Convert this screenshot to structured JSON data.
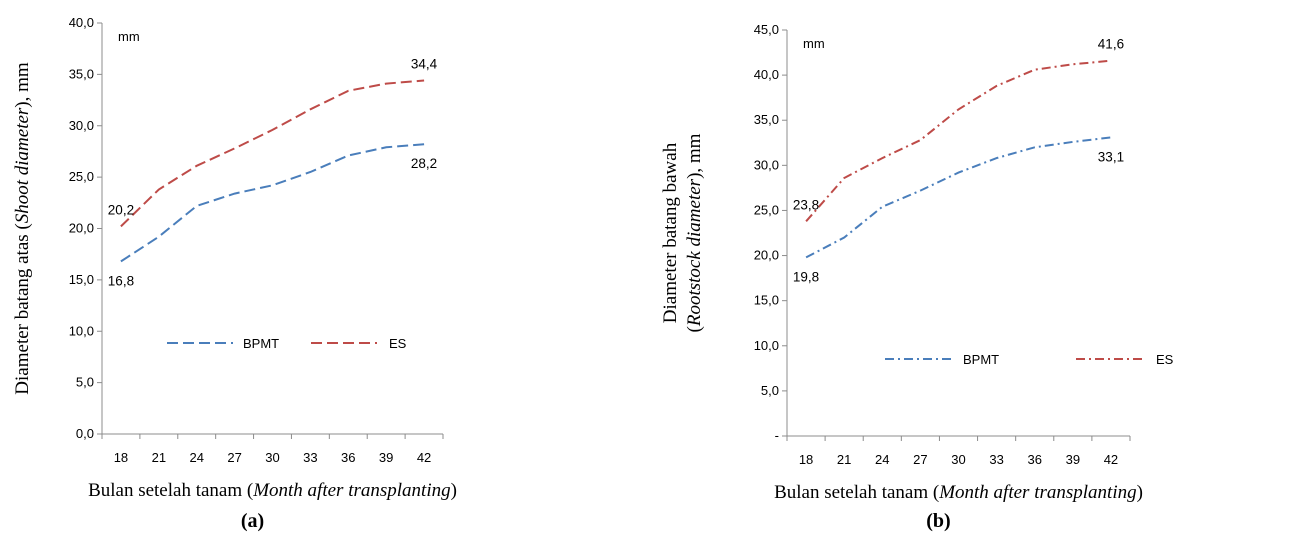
{
  "chart_data": [
    {
      "panel": "(a)",
      "type": "line",
      "unit_label": "mm",
      "xlabel": "Bulan setelah tanam (Month after transplanting)",
      "xlabel_parts": [
        {
          "text": "Bulan setelah tanam (",
          "italic": false
        },
        {
          "text": "Month after transplanting",
          "italic": true
        },
        {
          "text": ")",
          "italic": false
        }
      ],
      "ylabel_lines": [
        [
          {
            "text": "Diameter batang atas (",
            "italic": false
          },
          {
            "text": "Shoot diameter",
            "italic": true
          },
          {
            "text": "), mm",
            "italic": false
          }
        ]
      ],
      "x": [
        18,
        21,
        24,
        27,
        30,
        33,
        36,
        39,
        42
      ],
      "ylim": [
        0,
        40
      ],
      "yticks": [
        "0,0",
        "5,0",
        "10,0",
        "15,0",
        "20,0",
        "25,0",
        "30,0",
        "35,0",
        "40,0"
      ],
      "series": [
        {
          "name": "BPMT",
          "color": "#4a7ebb",
          "dash": "dash",
          "values": [
            16.8,
            19.2,
            22.2,
            23.4,
            24.2,
            25.5,
            27.1,
            27.9,
            28.2
          ],
          "labels": [
            {
              "index": 0,
              "text": "16,8",
              "pos": "below"
            },
            {
              "index": 8,
              "text": "28,2",
              "pos": "below"
            }
          ]
        },
        {
          "name": "ES",
          "color": "#be4b48",
          "dash": "dash",
          "values": [
            20.2,
            23.8,
            26.1,
            27.8,
            29.6,
            31.6,
            33.4,
            34.1,
            34.4
          ],
          "labels": [
            {
              "index": 0,
              "text": "20,2",
              "pos": "above"
            },
            {
              "index": 8,
              "text": "34,4",
              "pos": "above"
            }
          ]
        }
      ],
      "grid": false,
      "legend_position": "bottom-left"
    },
    {
      "panel": "(b)",
      "type": "line",
      "unit_label": "mm",
      "xlabel": "Bulan setelah tanam (Month after transplanting)",
      "xlabel_parts": [
        {
          "text": "Bulan setelah tanam (",
          "italic": false
        },
        {
          "text": "Month after transplanting",
          "italic": true
        },
        {
          "text": ")",
          "italic": false
        }
      ],
      "ylabel_lines": [
        [
          {
            "text": "Diameter batang bawah",
            "italic": false
          }
        ],
        [
          {
            "text": "(",
            "italic": false
          },
          {
            "text": "Rootstock diameter",
            "italic": true
          },
          {
            "text": "), mm",
            "italic": false
          }
        ]
      ],
      "x": [
        18,
        21,
        24,
        27,
        30,
        33,
        36,
        39,
        42
      ],
      "ylim": [
        0,
        45
      ],
      "yticks": [
        "-",
        "5,0",
        "10,0",
        "15,0",
        "20,0",
        "25,0",
        "30,0",
        "35,0",
        "40,0",
        "45,0"
      ],
      "series": [
        {
          "name": "BPMT",
          "color": "#4a7ebb",
          "dash": "dashdot",
          "values": [
            19.8,
            22.0,
            25.4,
            27.2,
            29.2,
            30.8,
            32.0,
            32.6,
            33.1
          ],
          "labels": [
            {
              "index": 0,
              "text": "19,8",
              "pos": "below"
            },
            {
              "index": 8,
              "text": "33,1",
              "pos": "below"
            }
          ]
        },
        {
          "name": "ES",
          "color": "#be4b48",
          "dash": "dashdot",
          "values": [
            23.8,
            28.6,
            30.8,
            32.8,
            36.2,
            38.8,
            40.6,
            41.2,
            41.6
          ],
          "labels": [
            {
              "index": 0,
              "text": "23,8",
              "pos": "above"
            },
            {
              "index": 8,
              "text": "41,6",
              "pos": "above"
            }
          ]
        }
      ],
      "grid": false,
      "legend_position": "bottom-left"
    }
  ]
}
